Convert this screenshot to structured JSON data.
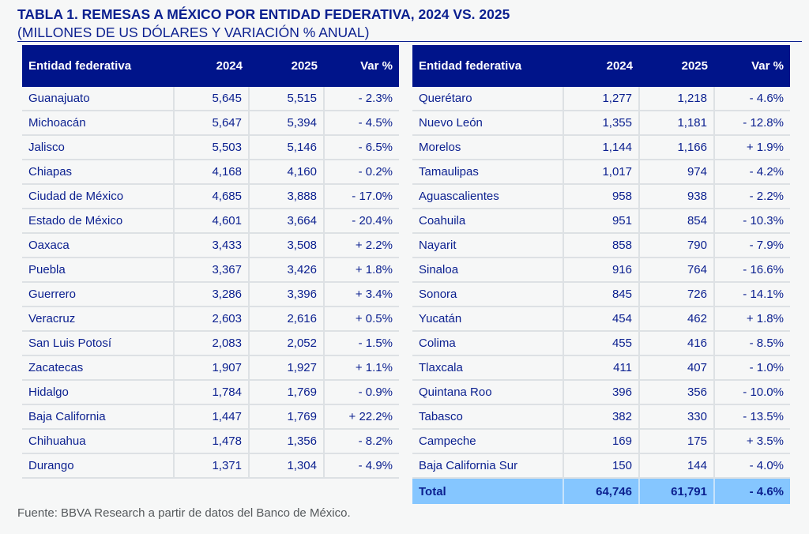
{
  "title": "TABLA 1. REMESAS A MÉXICO POR ENTIDAD FEDERATIVA, 2024 VS. 2025",
  "subtitle": "(MILLONES DE US DÓLARES Y VARIACIÓN % ANUAL)",
  "headers": [
    "Entidad federativa",
    "2024",
    "2025",
    "Var %"
  ],
  "left_rows": [
    [
      "Guanajuato",
      "5,645",
      "5,515",
      "- 2.3%"
    ],
    [
      "Michoacán",
      "5,647",
      "5,394",
      "- 4.5%"
    ],
    [
      "Jalisco",
      "5,503",
      "5,146",
      "- 6.5%"
    ],
    [
      "Chiapas",
      "4,168",
      "4,160",
      "- 0.2%"
    ],
    [
      "Ciudad de México",
      "4,685",
      "3,888",
      "- 17.0%"
    ],
    [
      "Estado de México",
      "4,601",
      "3,664",
      "- 20.4%"
    ],
    [
      "Oaxaca",
      "3,433",
      "3,508",
      "+ 2.2%"
    ],
    [
      "Puebla",
      "3,367",
      "3,426",
      "+ 1.8%"
    ],
    [
      "Guerrero",
      "3,286",
      "3,396",
      "+ 3.4%"
    ],
    [
      "Veracruz",
      "2,603",
      "2,616",
      "+ 0.5%"
    ],
    [
      "San Luis Potosí",
      "2,083",
      "2,052",
      "- 1.5%"
    ],
    [
      "Zacatecas",
      "1,907",
      "1,927",
      "+ 1.1%"
    ],
    [
      "Hidalgo",
      "1,784",
      "1,769",
      "- 0.9%"
    ],
    [
      "Baja California",
      "1,447",
      "1,769",
      "+ 22.2%"
    ],
    [
      "Chihuahua",
      "1,478",
      "1,356",
      "- 8.2%"
    ],
    [
      "Durango",
      "1,371",
      "1,304",
      "- 4.9%"
    ]
  ],
  "right_rows": [
    [
      "Querétaro",
      "1,277",
      "1,218",
      "- 4.6%"
    ],
    [
      "Nuevo León",
      "1,355",
      "1,181",
      "- 12.8%"
    ],
    [
      "Morelos",
      "1,144",
      "1,166",
      "+ 1.9%"
    ],
    [
      "Tamaulipas",
      "1,017",
      "974",
      "- 4.2%"
    ],
    [
      "Aguascalientes",
      "958",
      "938",
      "- 2.2%"
    ],
    [
      "Coahuila",
      "951",
      "854",
      "- 10.3%"
    ],
    [
      "Nayarit",
      "858",
      "790",
      "- 7.9%"
    ],
    [
      "Sinaloa",
      "916",
      "764",
      "- 16.6%"
    ],
    [
      "Sonora",
      "845",
      "726",
      "- 14.1%"
    ],
    [
      "Yucatán",
      "454",
      "462",
      "+ 1.8%"
    ],
    [
      "Colima",
      "455",
      "416",
      "- 8.5%"
    ],
    [
      "Tlaxcala",
      "411",
      "407",
      "- 1.0%"
    ],
    [
      "Quintana Roo",
      "396",
      "356",
      "- 10.0%"
    ],
    [
      "Tabasco",
      "382",
      "330",
      "- 13.5%"
    ],
    [
      "Campeche",
      "169",
      "175",
      "+ 3.5%"
    ],
    [
      "Baja California Sur",
      "150",
      "144",
      "- 4.0%"
    ]
  ],
  "total": [
    "Total",
    "64,746",
    "61,791",
    "- 4.6%"
  ],
  "footnote": "Fuente: BBVA Research a partir de datos del Banco de México.",
  "colors": {
    "header_bg": "#00148a",
    "text": "#0a1f8f",
    "total_bg": "#85c6ff"
  }
}
